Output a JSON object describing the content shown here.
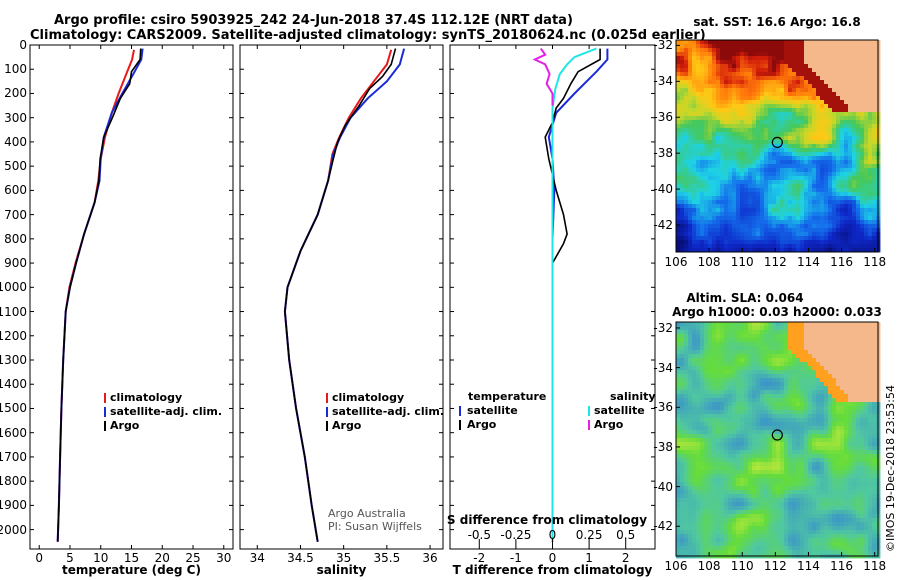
{
  "header": {
    "title_line1": "Argo profile: csiro 5903925_242 24-Jun-2018 37.4S 112.12E (NRT data)",
    "title_line2": "Climatology: CARS2009. Satellite-adjusted climatology: synTS_20180624.nc (0.025d earlier)"
  },
  "colors": {
    "climatology": "#e8191c",
    "satellite": "#1a2bd6",
    "argo": "#000000",
    "sat_salinity": "#1fe6e6",
    "argo_salinity": "#e61fe6",
    "land": "#f5b88a"
  },
  "credits": {
    "line1": "Argo Australia",
    "line2": "PI: Susan Wijffels"
  },
  "stamp": "©IMOS 19-Dec-2018 23:53:54",
  "chart_data": [
    {
      "id": "temperature-profile",
      "type": "line",
      "xlabel": "temperature (deg C)",
      "xlim": [
        -1.5,
        31.5
      ],
      "ylim": [
        2080,
        0
      ],
      "x_ticks": [
        "0",
        "5",
        "10",
        "15",
        "20",
        "25",
        "30"
      ],
      "y_ticks": [
        "0",
        "100",
        "200",
        "300",
        "400",
        "500",
        "600",
        "700",
        "800",
        "900",
        "1000",
        "1100",
        "1200",
        "1300",
        "1400",
        "1500",
        "1600",
        "1700",
        "1800",
        "1900",
        "2000"
      ],
      "legend": [
        "climatology",
        "satellite-adj. clim.",
        "Argo"
      ],
      "series": [
        {
          "name": "climatology",
          "color": "red",
          "depth": [
            20,
            60,
            110,
            200,
            280,
            380,
            470,
            560,
            650,
            780,
            900,
            1000,
            1100,
            1300,
            1500,
            1700,
            1900,
            2050
          ],
          "values": [
            15.4,
            15.1,
            14.3,
            12.9,
            11.8,
            10.7,
            10.0,
            9.6,
            9.0,
            7.3,
            5.9,
            4.9,
            4.3,
            3.9,
            3.6,
            3.4,
            3.2,
            3.0
          ]
        },
        {
          "name": "satellite-adj. clim.",
          "color": "blue",
          "depth": [
            15,
            60,
            110,
            200,
            280,
            380,
            470,
            560,
            650,
            780,
            900,
            1000,
            1100,
            1300,
            1500,
            1700,
            1900,
            2050
          ],
          "values": [
            16.8,
            16.6,
            15.5,
            13.5,
            11.8,
            10.5,
            10.0,
            9.8,
            9.0,
            7.3,
            6.0,
            5.0,
            4.3,
            3.9,
            3.6,
            3.4,
            3.2,
            3.0
          ]
        },
        {
          "name": "Argo",
          "color": "black",
          "depth": [
            15,
            60,
            110,
            160,
            220,
            300,
            380,
            470,
            560,
            650,
            780,
            900,
            1000,
            1100,
            1300,
            1500,
            1700,
            1900,
            2050
          ],
          "values": [
            16.5,
            16.4,
            15.0,
            14.7,
            13.2,
            11.9,
            10.5,
            9.9,
            9.7,
            9.0,
            7.3,
            6.0,
            5.0,
            4.3,
            3.9,
            3.6,
            3.4,
            3.2,
            3.0
          ]
        }
      ]
    },
    {
      "id": "salinity-profile",
      "type": "line",
      "xlabel": "salinity",
      "xlim": [
        33.8,
        36.15
      ],
      "ylim": [
        2080,
        0
      ],
      "x_ticks": [
        "34",
        "34.5",
        "35",
        "35.5",
        "36"
      ],
      "legend": [
        "climatology",
        "satellite-adj. clim.",
        "Argo"
      ],
      "series": [
        {
          "name": "climatology",
          "color": "red",
          "depth": [
            20,
            80,
            150,
            220,
            300,
            380,
            450,
            560,
            700,
            850,
            1000,
            1100,
            1300,
            1500,
            1700,
            1900,
            2050
          ],
          "values": [
            35.55,
            35.5,
            35.35,
            35.2,
            35.06,
            34.95,
            34.87,
            34.82,
            34.7,
            34.5,
            34.35,
            34.32,
            34.37,
            34.45,
            34.55,
            34.63,
            34.7
          ]
        },
        {
          "name": "satellite-adj. clim.",
          "color": "blue",
          "depth": [
            15,
            80,
            150,
            220,
            300,
            380,
            450,
            560,
            700,
            850,
            1000,
            1100,
            1300,
            1500,
            1700,
            1900,
            2050
          ],
          "values": [
            35.7,
            35.65,
            35.5,
            35.28,
            35.08,
            34.96,
            34.88,
            34.82,
            34.7,
            34.5,
            34.35,
            34.32,
            34.37,
            34.45,
            34.55,
            34.63,
            34.7
          ]
        },
        {
          "name": "Argo",
          "color": "black",
          "depth": [
            15,
            80,
            130,
            180,
            250,
            330,
            400,
            470,
            560,
            700,
            850,
            1000,
            1100,
            1300,
            1500,
            1700,
            1900,
            2050
          ],
          "values": [
            35.6,
            35.55,
            35.45,
            35.3,
            35.18,
            35.02,
            34.93,
            34.88,
            34.82,
            34.7,
            34.5,
            34.35,
            34.32,
            34.37,
            34.45,
            34.55,
            34.63,
            34.7
          ]
        }
      ]
    },
    {
      "id": "difference-profile",
      "type": "line",
      "xlabel": "T difference from climatology",
      "xlim": [
        -2.8,
        2.8
      ],
      "ylim": [
        2080,
        0
      ],
      "x_ticks": [
        "-2",
        "-1",
        "0",
        "1",
        "2"
      ],
      "top_axis_label": "S difference from climatology",
      "top_ticks": [
        "-0.5",
        "-0.25",
        "0",
        "0.25",
        "0.5"
      ],
      "legend_left": {
        "title": "temperature",
        "items": [
          "satellite",
          "Argo"
        ]
      },
      "legend_right": {
        "title": "salinity",
        "items": [
          "satellite",
          "Argo"
        ]
      },
      "series": [
        {
          "name": "temperature satellite",
          "color": "blue",
          "depth": [
            15,
            60,
            110,
            200,
            280,
            380,
            470,
            600,
            800,
            1000,
            1500,
            2050
          ],
          "values": [
            1.5,
            1.5,
            1.2,
            0.6,
            0.1,
            -0.1,
            0.0,
            0.05,
            0.0,
            0.0,
            0.0,
            0.0
          ]
        },
        {
          "name": "temperature Argo",
          "color": "black",
          "depth": [
            15,
            60,
            110,
            160,
            220,
            260,
            320,
            380,
            470,
            600,
            700,
            780,
            820,
            900,
            1000,
            1500,
            2050
          ],
          "values": [
            1.3,
            1.3,
            0.7,
            0.5,
            0.3,
            0.1,
            0.0,
            -0.2,
            -0.1,
            0.1,
            0.3,
            0.4,
            0.3,
            0.0,
            0.0,
            0.0,
            0.0
          ]
        },
        {
          "name": "salinity satellite",
          "color": "cyan",
          "depth": [
            15,
            50,
            80,
            120,
            180,
            260,
            350,
            450,
            600,
            800,
            1000,
            1500,
            2050
          ],
          "values": [
            0.3,
            0.15,
            0.1,
            0.05,
            0.02,
            0.0,
            0.0,
            0.0,
            0.0,
            0.0,
            0.0,
            0.0,
            0.0
          ]
        },
        {
          "name": "salinity Argo",
          "color": "magenta",
          "depth": [
            15,
            40,
            60,
            80,
            120,
            160,
            200,
            250
          ],
          "values": [
            -0.08,
            -0.05,
            -0.12,
            -0.05,
            -0.02,
            -0.04,
            0.0,
            0.0
          ]
        }
      ]
    },
    {
      "id": "sst-map",
      "type": "heatmap",
      "title": "sat. SST: 16.6 Argo: 16.8",
      "xlim": [
        106,
        118.2
      ],
      "ylim": [
        -43.5,
        -31.7
      ],
      "x_ticks": [
        "106",
        "108",
        "110",
        "112",
        "114",
        "116",
        "118"
      ],
      "y_ticks": [
        "-32",
        "-34",
        "-36",
        "-38",
        "-40",
        "-42"
      ],
      "marker": {
        "lon": 112.12,
        "lat": -37.4
      }
    },
    {
      "id": "sla-map",
      "type": "heatmap",
      "title_line1": "Altim. SLA: 0.064",
      "title_line2": "Argo h1000: 0.03 h2000: 0.033",
      "xlim": [
        106,
        118.2
      ],
      "ylim": [
        -43.5,
        -31.7
      ],
      "x_ticks": [
        "106",
        "108",
        "110",
        "112",
        "114",
        "116",
        "118"
      ],
      "y_ticks": [
        "-32",
        "-34",
        "-36",
        "-38",
        "-40",
        "-42"
      ],
      "marker": {
        "lon": 112.12,
        "lat": -37.4
      }
    }
  ]
}
